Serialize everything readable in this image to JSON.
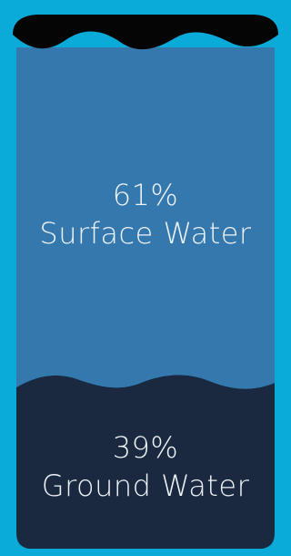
{
  "colors": {
    "background": "#0aaad9",
    "surface_water": "#3478ae",
    "ground_water": "#1a2940",
    "tank_top": "#050505",
    "text": "#eef3f8"
  },
  "segments": [
    {
      "percent": "61%",
      "label": "Surface Water",
      "value": 61
    },
    {
      "percent": "39%",
      "label": "Ground Water",
      "value": 39
    }
  ]
}
